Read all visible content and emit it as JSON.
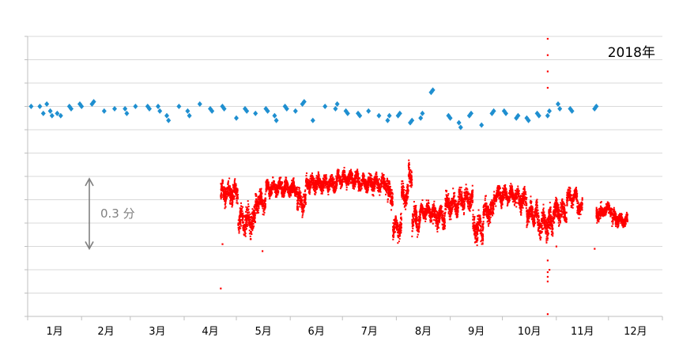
{
  "chart_data": {
    "type": "scatter",
    "title": "",
    "year_label": "2018年",
    "xlabel": "",
    "ylabel": "",
    "month_labels": [
      "1月",
      "2月",
      "3月",
      "4月",
      "5月",
      "6月",
      "7月",
      "8月",
      "9月",
      "10月",
      "11月",
      "12月"
    ],
    "scale_annotation": "0.3 分",
    "scale_annotation_span": 0.3,
    "x_range_days": [
      0,
      365
    ],
    "y_range": [
      0,
      1.2
    ],
    "grid": true,
    "series": [
      {
        "marker": "diamond",
        "color": "#1f8fd0",
        "points": [
          [
            2,
            0.9
          ],
          [
            7,
            0.9
          ],
          [
            9,
            0.87
          ],
          [
            11,
            0.91
          ],
          [
            13,
            0.88
          ],
          [
            14,
            0.86
          ],
          [
            17,
            0.87
          ],
          [
            19,
            0.86
          ],
          [
            24,
            0.9
          ],
          [
            25,
            0.89
          ],
          [
            30,
            0.91
          ],
          [
            31,
            0.9
          ],
          [
            37,
            0.91
          ],
          [
            38,
            0.92
          ],
          [
            44,
            0.88
          ],
          [
            50,
            0.89
          ],
          [
            56,
            0.89
          ],
          [
            57,
            0.87
          ],
          [
            62,
            0.9
          ],
          [
            69,
            0.9
          ],
          [
            70,
            0.89
          ],
          [
            75,
            0.9
          ],
          [
            76,
            0.88
          ],
          [
            80,
            0.86
          ],
          [
            81,
            0.84
          ],
          [
            87,
            0.9
          ],
          [
            92,
            0.88
          ],
          [
            93,
            0.86
          ],
          [
            99,
            0.91
          ],
          [
            105,
            0.89
          ],
          [
            106,
            0.88
          ],
          [
            112,
            0.9
          ],
          [
            113,
            0.89
          ],
          [
            120,
            0.85
          ],
          [
            125,
            0.89
          ],
          [
            126,
            0.88
          ],
          [
            131,
            0.87
          ],
          [
            137,
            0.89
          ],
          [
            138,
            0.88
          ],
          [
            142,
            0.86
          ],
          [
            143,
            0.84
          ],
          [
            148,
            0.9
          ],
          [
            149,
            0.89
          ],
          [
            154,
            0.88
          ],
          [
            158,
            0.91
          ],
          [
            159,
            0.92
          ],
          [
            164,
            0.84
          ],
          [
            171,
            0.9
          ],
          [
            177,
            0.89
          ],
          [
            178,
            0.91
          ],
          [
            183,
            0.88
          ],
          [
            184,
            0.87
          ],
          [
            190,
            0.87
          ],
          [
            191,
            0.86
          ],
          [
            196,
            0.88
          ],
          [
            202,
            0.86
          ],
          [
            207,
            0.84
          ],
          [
            208,
            0.86
          ],
          [
            213,
            0.86
          ],
          [
            214,
            0.87
          ],
          [
            220,
            0.83
          ],
          [
            221,
            0.84
          ],
          [
            226,
            0.85
          ],
          [
            227,
            0.87
          ],
          [
            232,
            0.96
          ],
          [
            233,
            0.97
          ],
          [
            242,
            0.86
          ],
          [
            243,
            0.85
          ],
          [
            248,
            0.83
          ],
          [
            249,
            0.81
          ],
          [
            254,
            0.86
          ],
          [
            255,
            0.87
          ],
          [
            261,
            0.82
          ],
          [
            267,
            0.87
          ],
          [
            268,
            0.88
          ],
          [
            274,
            0.88
          ],
          [
            275,
            0.87
          ],
          [
            281,
            0.85
          ],
          [
            282,
            0.86
          ],
          [
            287,
            0.85
          ],
          [
            288,
            0.84
          ],
          [
            293,
            0.87
          ],
          [
            294,
            0.86
          ],
          [
            299,
            0.86
          ],
          [
            300,
            0.88
          ],
          [
            305,
            0.91
          ],
          [
            306,
            0.89
          ],
          [
            312,
            0.89
          ],
          [
            313,
            0.88
          ],
          [
            326,
            0.89
          ],
          [
            327,
            0.9
          ]
        ]
      },
      {
        "marker": "dot",
        "color": "#ff0000",
        "start_day": 111,
        "end_day": 365,
        "outliers": [
          [
            111,
            0.12
          ],
          [
            112,
            0.31
          ],
          [
            135,
            0.28
          ],
          [
            299,
            0.01
          ],
          [
            299,
            0.19
          ],
          [
            299,
            0.17
          ],
          [
            299,
            0.15
          ],
          [
            299,
            0.24
          ],
          [
            299,
            0.98
          ],
          [
            299,
            1.05
          ],
          [
            299,
            1.12
          ],
          [
            299,
            1.19
          ],
          [
            300,
            0.2
          ],
          [
            304,
            0.3
          ],
          [
            326,
            0.29
          ]
        ],
        "segments": [
          {
            "from": 111,
            "to": 121,
            "level": 0.53,
            "spread": 0.04
          },
          {
            "from": 121,
            "to": 131,
            "level": 0.41,
            "spread": 0.05
          },
          {
            "from": 131,
            "to": 137,
            "level": 0.49,
            "spread": 0.04
          },
          {
            "from": 137,
            "to": 155,
            "level": 0.55,
            "spread": 0.03
          },
          {
            "from": 155,
            "to": 160,
            "level": 0.49,
            "spread": 0.04
          },
          {
            "from": 160,
            "to": 178,
            "level": 0.57,
            "spread": 0.03
          },
          {
            "from": 178,
            "to": 190,
            "level": 0.59,
            "spread": 0.03
          },
          {
            "from": 190,
            "to": 207,
            "level": 0.57,
            "spread": 0.03
          },
          {
            "from": 207,
            "to": 210,
            "level": 0.52,
            "spread": 0.04
          },
          {
            "from": 210,
            "to": 215,
            "level": 0.38,
            "spread": 0.04
          },
          {
            "from": 215,
            "to": 219,
            "level": 0.52,
            "spread": 0.04
          },
          {
            "from": 219,
            "to": 221,
            "level": 0.6,
            "spread": 0.04
          },
          {
            "from": 221,
            "to": 226,
            "level": 0.42,
            "spread": 0.05
          },
          {
            "from": 226,
            "to": 233,
            "level": 0.45,
            "spread": 0.03
          },
          {
            "from": 233,
            "to": 240,
            "level": 0.43,
            "spread": 0.04
          },
          {
            "from": 240,
            "to": 248,
            "level": 0.48,
            "spread": 0.04
          },
          {
            "from": 248,
            "to": 256,
            "level": 0.5,
            "spread": 0.04
          },
          {
            "from": 256,
            "to": 262,
            "level": 0.38,
            "spread": 0.05
          },
          {
            "from": 262,
            "to": 268,
            "level": 0.45,
            "spread": 0.04
          },
          {
            "from": 268,
            "to": 281,
            "level": 0.52,
            "spread": 0.03
          },
          {
            "from": 281,
            "to": 287,
            "level": 0.5,
            "spread": 0.04
          },
          {
            "from": 287,
            "to": 293,
            "level": 0.44,
            "spread": 0.04
          },
          {
            "from": 293,
            "to": 302,
            "level": 0.4,
            "spread": 0.05
          },
          {
            "from": 302,
            "to": 310,
            "level": 0.45,
            "spread": 0.04
          },
          {
            "from": 310,
            "to": 316,
            "level": 0.51,
            "spread": 0.03
          },
          {
            "from": 316,
            "to": 319,
            "level": 0.47,
            "spread": 0.03
          },
          {
            "from": 327,
            "to": 331,
            "level": 0.44,
            "spread": 0.03
          },
          {
            "from": 331,
            "to": 336,
            "level": 0.46,
            "spread": 0.02
          },
          {
            "from": 336,
            "to": 340,
            "level": 0.42,
            "spread": 0.03
          },
          {
            "from": 340,
            "to": 345,
            "level": 0.41,
            "spread": 0.02
          }
        ]
      }
    ]
  }
}
